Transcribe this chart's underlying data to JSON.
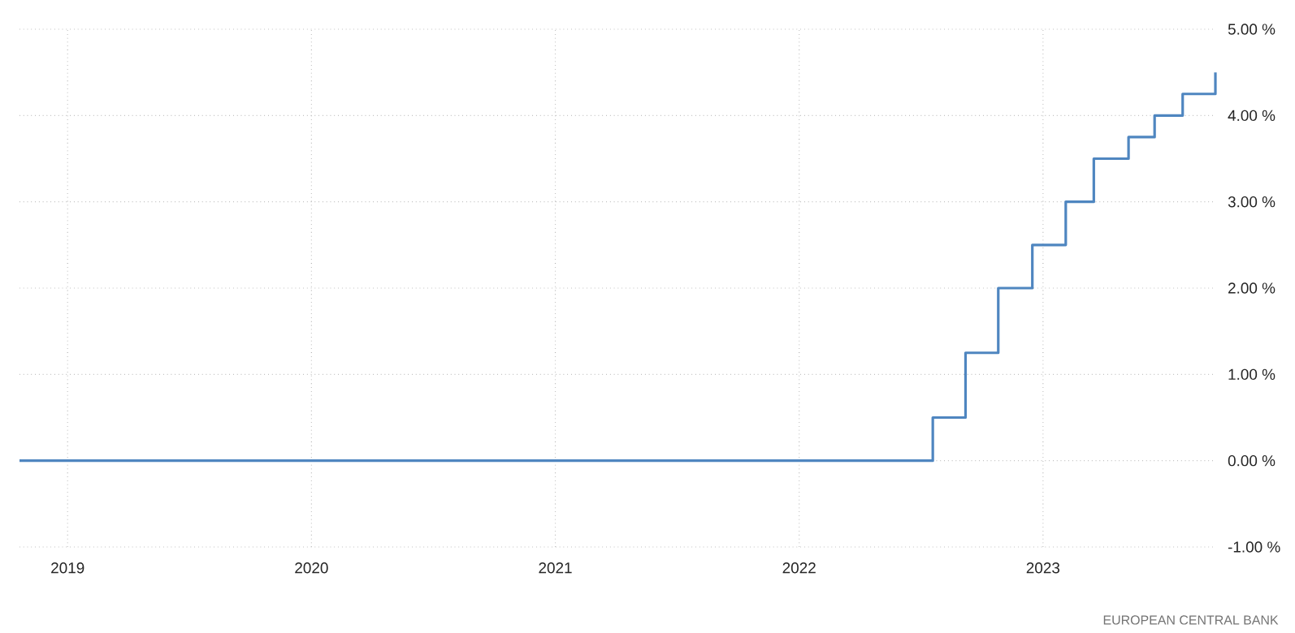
{
  "chart_data": {
    "type": "step",
    "x": [
      "2018-10-21",
      "2022-07-20",
      "2022-09-07",
      "2022-10-26",
      "2022-12-16",
      "2023-02-04",
      "2023-03-18",
      "2023-05-09",
      "2023-06-17",
      "2023-07-29",
      "2023-09-16"
    ],
    "series": [
      {
        "color": "#4f86c0",
        "values": [
          0,
          0.5,
          1.25,
          2.0,
          2.5,
          3.0,
          3.5,
          3.75,
          4.0,
          4.25,
          4.5
        ]
      }
    ],
    "xlim": [
      "2018-10-21",
      "2023-09-16"
    ],
    "xticks": [
      "2019",
      "2020",
      "2021",
      "2022",
      "2023"
    ],
    "ylim": [
      -1,
      5
    ],
    "yticks": [
      {
        "value": -1,
        "label": "-1.00 %"
      },
      {
        "value": 0,
        "label": "0.00 %"
      },
      {
        "value": 1,
        "label": "1.00 %"
      },
      {
        "value": 2,
        "label": "2.00 %"
      },
      {
        "value": 3,
        "label": "3.00 %"
      },
      {
        "value": 4,
        "label": "4.00 %"
      },
      {
        "value": 5,
        "label": "5.00 %"
      }
    ],
    "grid": true,
    "marker": "none",
    "line_style": "solid",
    "annotations": [
      "EUROPEAN CENTRAL BANK"
    ]
  }
}
